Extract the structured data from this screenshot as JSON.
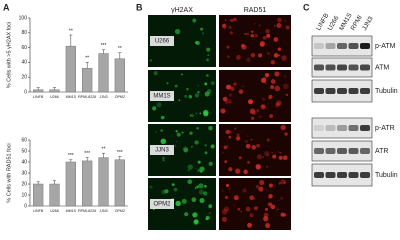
{
  "panel_labels": [
    "A",
    "B",
    "C"
  ],
  "chart_data": [
    {
      "type": "bar",
      "ylabel": "% Cells with >5 γH2AX foci",
      "categories": [
        "LINFB",
        "U266",
        "MM1S",
        "RPMI-8226",
        "JJN3",
        "OPM2"
      ],
      "values": [
        3,
        3,
        62,
        32,
        52,
        45
      ],
      "errors": [
        3,
        3,
        15,
        8,
        5,
        8
      ],
      "annotations": [
        null,
        null,
        "**",
        "**",
        "***",
        "**"
      ],
      "color": "#a6a6a6",
      "ylim": [
        0,
        100
      ],
      "yticks": [
        0,
        20,
        40,
        60,
        80,
        100
      ]
    },
    {
      "type": "bar",
      "ylabel": "% Cells with RAD51 foci",
      "categories": [
        "LINFB",
        "U266",
        "MM1S",
        "RPMI-8226",
        "JJN3",
        "OPM2"
      ],
      "values": [
        20,
        20,
        40,
        41,
        44,
        42
      ],
      "errors": [
        2,
        3,
        2,
        3,
        4,
        3
      ],
      "annotations": [
        null,
        null,
        "***",
        "***",
        "**",
        "***"
      ],
      "color": "#a6a6a6",
      "ylim": [
        0,
        60
      ],
      "yticks": [
        0,
        10,
        20,
        30,
        40,
        50,
        60
      ]
    }
  ],
  "microscopy": {
    "channels": [
      "γH2AX",
      "RAD51"
    ],
    "rows": [
      "U266",
      "MM1S",
      "JJN3",
      "OPM2"
    ]
  },
  "blot": {
    "lanes": [
      "LINFB",
      "U266",
      "MM1S",
      "RPMI",
      "JJN3"
    ],
    "bands": [
      "p-ATM",
      "ATM",
      "Tubulin",
      "p-ATR",
      "ATR",
      "Tubulin"
    ]
  }
}
